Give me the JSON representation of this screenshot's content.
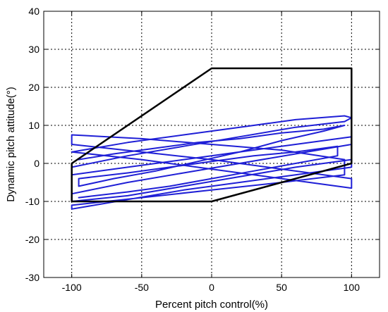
{
  "chart_data": {
    "type": "line",
    "title": "",
    "xlabel": "Percent pitch control(%)",
    "ylabel": "Dynamic pitch attitude(°)",
    "xlim": [
      -120,
      120
    ],
    "ylim": [
      -30,
      40
    ],
    "x_ticks": [
      -100,
      -50,
      0,
      50,
      100
    ],
    "x_tick_labels": [
      "-100",
      "-50",
      "0",
      "50",
      "100"
    ],
    "y_ticks": [
      -30,
      -20,
      -10,
      0,
      10,
      20,
      30,
      40
    ],
    "y_tick_labels": [
      "-30",
      "-20",
      "-10",
      "0",
      "10",
      "20",
      "30",
      "40"
    ],
    "grid": true,
    "series": [
      {
        "color": "#000000",
        "x": [
          -100,
          0,
          100,
          100,
          0,
          -100,
          -100
        ],
        "y": [
          0,
          25,
          25,
          0,
          -10,
          -10,
          0
        ]
      },
      {
        "color": "#1f1fd6",
        "x": [
          -100,
          -60,
          -20,
          20,
          60,
          95,
          100,
          95,
          60,
          20,
          -20,
          -60,
          -100,
          -100,
          -60,
          -20,
          20,
          60,
          100,
          100,
          60,
          20,
          -20,
          -60,
          -100,
          -100,
          -60,
          -20,
          20,
          60,
          100,
          100,
          60,
          20,
          -20,
          -60,
          -100,
          -100,
          -50,
          0,
          50,
          95,
          95,
          50,
          0,
          -50,
          -100,
          -100,
          -50,
          0,
          50,
          100,
          100,
          50,
          0,
          -50,
          -100
        ],
        "y": [
          3,
          5.5,
          7.5,
          9.5,
          11.5,
          12.5,
          12,
          11,
          9.5,
          7,
          4.5,
          2,
          -1,
          -3,
          -1,
          1,
          3,
          5,
          7,
          5,
          2.5,
          0,
          -2.5,
          -5,
          -8,
          -10,
          -8.5,
          -6,
          -3.5,
          -1,
          1,
          -1,
          -3,
          -5,
          -7,
          -9.5,
          -12,
          -11,
          -9,
          -7,
          -5,
          -3,
          1,
          3.5,
          5,
          6.5,
          7.5,
          5,
          3,
          1,
          -1.5,
          -4,
          -6.5,
          -4,
          -1.5,
          1,
          3
        ]
      },
      {
        "color": "#1f1fd6",
        "x": [
          -95,
          -70,
          -40,
          -10,
          20,
          50,
          80,
          95,
          80,
          50,
          20,
          -10,
          -40,
          -70,
          -95,
          -95,
          -60,
          -30,
          0,
          30,
          60,
          90,
          90,
          60,
          30,
          0,
          -30,
          -60,
          -95
        ],
        "y": [
          1,
          2.5,
          4,
          5.5,
          6.5,
          8,
          9,
          10,
          8.5,
          6,
          3,
          0.5,
          -2,
          -4,
          -6,
          -4,
          -2.5,
          -1,
          0.5,
          2,
          3,
          4.5,
          2,
          0,
          -2,
          -4,
          -6,
          -7.5,
          -9
        ]
      }
    ]
  }
}
